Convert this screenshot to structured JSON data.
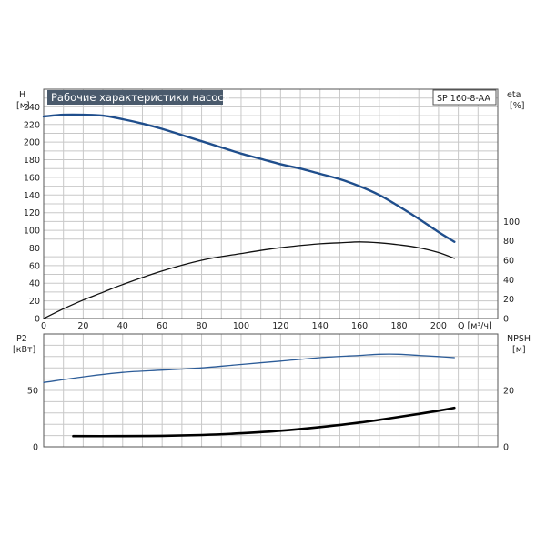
{
  "header": {
    "title": "Рабочие характеристики насоса",
    "model": "SP 160-8-AA"
  },
  "colors": {
    "head": "#1f4e8c",
    "eta": "#111111",
    "p2": "#2c5c98",
    "npsh": "#000000",
    "grid": "#c8c8c8",
    "title_bg": "#4a5a6c"
  },
  "top_panel": {
    "left_axis": {
      "label": "H",
      "unit": "[м]"
    },
    "right_axis": {
      "label": "eta",
      "unit": "[%]"
    },
    "x_axis": {
      "label": "Q [м³/ч]"
    },
    "x_ticks": [
      "0",
      "20",
      "40",
      "60",
      "80",
      "100",
      "120",
      "140",
      "160",
      "180",
      "200"
    ],
    "y_ticks": [
      "0",
      "20",
      "40",
      "60",
      "80",
      "100",
      "120",
      "140",
      "160",
      "180",
      "200",
      "220",
      "240"
    ],
    "eta_ticks": [
      "0",
      "20",
      "40",
      "60",
      "80",
      "100"
    ]
  },
  "bottom_panel": {
    "left_axis": {
      "label": "P2",
      "unit": "[кВт]"
    },
    "right_axis": {
      "label": "NPSH",
      "unit": "[м]"
    },
    "p2_ticks": [
      "0",
      "50"
    ],
    "npsh_ticks": [
      "0",
      "20"
    ]
  },
  "chart_data": [
    {
      "type": "line",
      "title": "Рабочие характеристики насоса",
      "xlabel": "Q [м³/ч]",
      "ylabel": "H [м]",
      "y2label": "eta [%]",
      "xlim": [
        0,
        230
      ],
      "ylim": [
        0,
        260
      ],
      "y2lim": [
        0,
        100
      ],
      "grid": true,
      "series": [
        {
          "name": "H",
          "axis": "left",
          "x": [
            0,
            10,
            20,
            30,
            40,
            50,
            60,
            70,
            80,
            90,
            100,
            110,
            120,
            130,
            140,
            150,
            160,
            170,
            180,
            190,
            200,
            208
          ],
          "y": [
            229,
            231,
            231,
            230,
            226,
            221,
            215,
            208,
            201,
            194,
            187,
            181,
            175,
            170,
            164,
            158,
            150,
            140,
            127,
            113,
            98,
            87
          ]
        },
        {
          "name": "eta",
          "axis": "right",
          "x": [
            0,
            10,
            20,
            30,
            40,
            60,
            80,
            100,
            120,
            140,
            150,
            160,
            170,
            180,
            190,
            200,
            208
          ],
          "y": [
            0,
            10,
            19,
            27,
            35,
            49,
            60,
            67,
            73,
            77,
            78,
            79,
            78,
            76,
            73,
            68,
            62
          ]
        }
      ]
    },
    {
      "type": "line",
      "ylabel": "P2 [кВт]",
      "y2label": "NPSH [м]",
      "xlim": [
        0,
        230
      ],
      "ylim": [
        0,
        100
      ],
      "y2lim": [
        0,
        40
      ],
      "grid": true,
      "series": [
        {
          "name": "P2",
          "axis": "left",
          "x": [
            0,
            20,
            40,
            60,
            80,
            100,
            120,
            140,
            160,
            170,
            180,
            190,
            200,
            208
          ],
          "y": [
            57,
            62,
            66,
            68,
            70,
            73,
            76,
            79,
            81,
            82,
            82,
            81,
            80,
            79
          ]
        },
        {
          "name": "NPSH",
          "axis": "right",
          "x": [
            15,
            40,
            60,
            80,
            100,
            120,
            140,
            160,
            180,
            200,
            208
          ],
          "y": [
            3.8,
            3.8,
            3.9,
            4.2,
            4.8,
            5.7,
            7.0,
            8.6,
            10.6,
            12.8,
            13.8
          ]
        }
      ]
    }
  ]
}
